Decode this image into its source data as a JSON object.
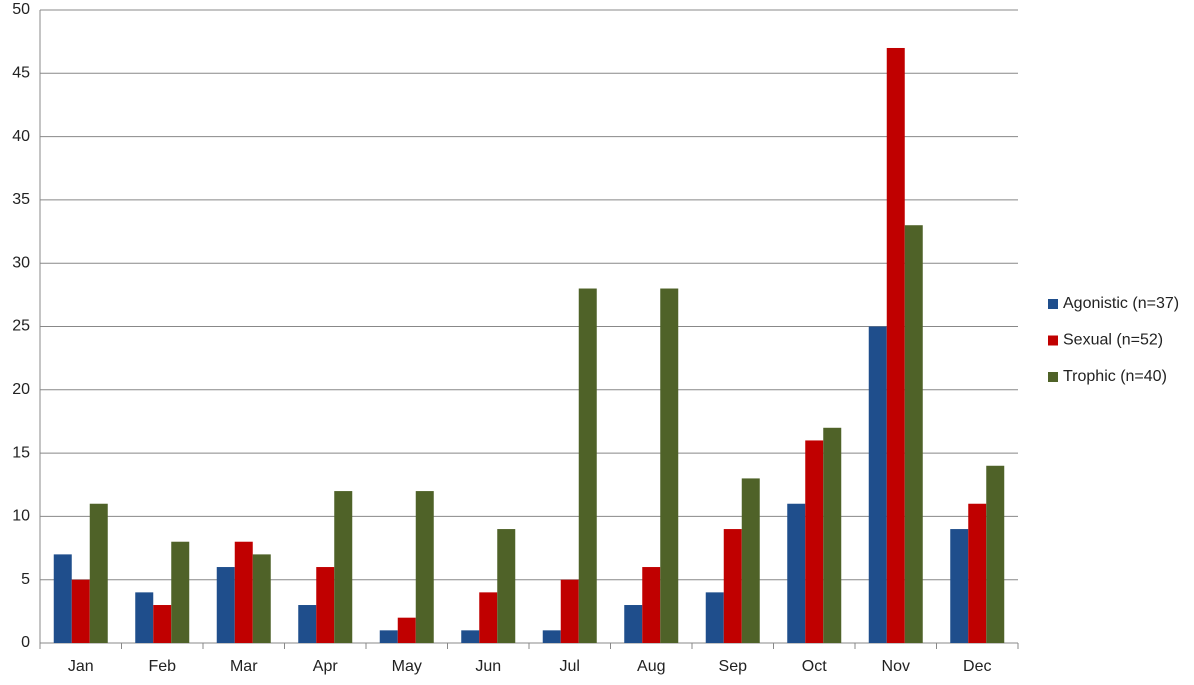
{
  "chart_data": {
    "type": "bar",
    "categories": [
      "Jan",
      "Feb",
      "Mar",
      "Apr",
      "May",
      "Jun",
      "Jul",
      "Aug",
      "Sep",
      "Oct",
      "Nov",
      "Dec"
    ],
    "series": [
      {
        "name": "Agonistic (n=37)",
        "color": "#1f4e8c",
        "values": [
          7,
          4,
          6,
          3,
          1,
          1,
          1,
          3,
          4,
          11,
          25,
          9
        ]
      },
      {
        "name": "Sexual (n=52)",
        "color": "#c00000",
        "values": [
          5,
          3,
          8,
          6,
          2,
          4,
          5,
          6,
          9,
          16,
          47,
          11
        ]
      },
      {
        "name": "Trophic (n=40)",
        "color": "#4f6228",
        "values": [
          11,
          8,
          7,
          12,
          12,
          9,
          28,
          28,
          13,
          17,
          33,
          14
        ]
      }
    ],
    "ylim": [
      0,
      50
    ],
    "yticks": [
      0,
      5,
      10,
      15,
      20,
      25,
      30,
      35,
      40,
      45,
      50
    ],
    "grid": true,
    "legend": "right"
  }
}
